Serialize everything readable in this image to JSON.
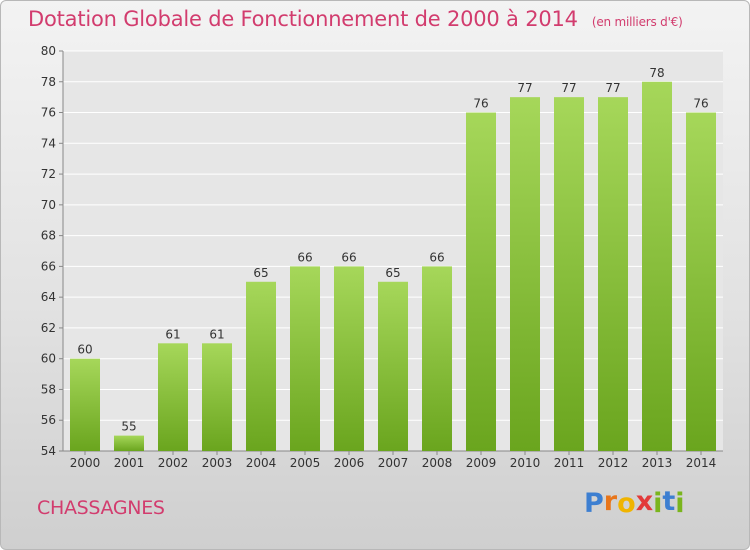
{
  "header": {
    "title": "Dotation Globale de Fonctionnement de 2000 à 2014",
    "unit": "(en milliers d'€)"
  },
  "place_name": "CHASSAGNES",
  "logo": {
    "letters": [
      "P",
      "r",
      "o",
      "x",
      "i",
      "t",
      "i"
    ],
    "colors": [
      "#3d7fd1",
      "#e8751a",
      "#f0b400",
      "#e23a3a",
      "#7ab51d",
      "#3d7fd1",
      "#7ab51d"
    ]
  },
  "colors": {
    "bar_light": "#a6d75a",
    "bar_dark": "#6aa51e",
    "grid": "#ffffff",
    "text": "#333333"
  },
  "chart_data": {
    "type": "bar",
    "title": "Dotation Globale de Fonctionnement de 2000 à 2014",
    "subtitle": "(en milliers d'€)",
    "categories": [
      "2000",
      "2001",
      "2002",
      "2003",
      "2004",
      "2005",
      "2006",
      "2007",
      "2008",
      "2009",
      "2010",
      "2011",
      "2012",
      "2013",
      "2014"
    ],
    "values": [
      60,
      55,
      61,
      61,
      65,
      66,
      66,
      65,
      66,
      76,
      77,
      77,
      77,
      78,
      76
    ],
    "ylim": [
      54,
      80
    ],
    "yticks": [
      54,
      56,
      58,
      60,
      62,
      64,
      66,
      68,
      70,
      72,
      74,
      76,
      78,
      80
    ],
    "grid": true,
    "xlabel": "",
    "ylabel": ""
  }
}
